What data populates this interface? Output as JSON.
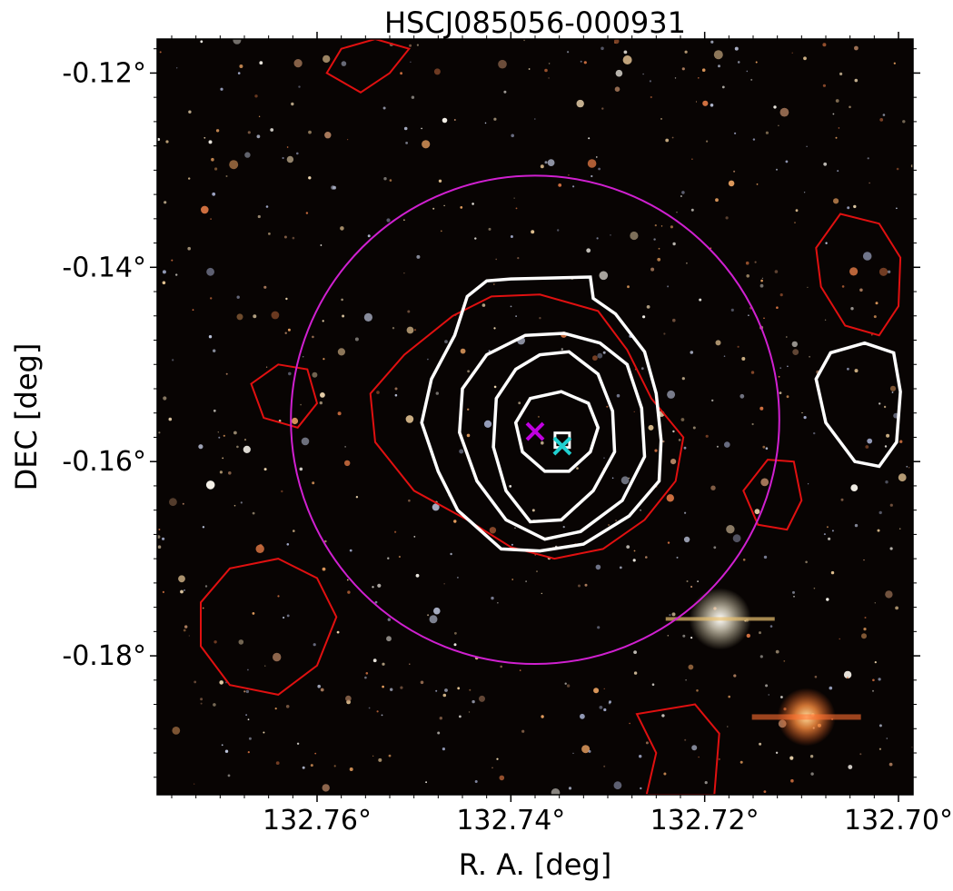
{
  "chart_data": {
    "type": "image",
    "title": "HSCJ085056-000931",
    "xlabel": "R. A. [deg]",
    "ylabel": "DEC [deg]",
    "x_direction": "decreasing",
    "xlim": [
      132.7765,
      132.6985
    ],
    "ylim": [
      -0.1943,
      -0.1165
    ],
    "x_ticks": [
      {
        "value": 132.76,
        "label": "132.76°"
      },
      {
        "value": 132.74,
        "label": "132.74°"
      },
      {
        "value": 132.72,
        "label": "132.72°"
      },
      {
        "value": 132.7,
        "label": "132.70°"
      }
    ],
    "y_ticks": [
      {
        "value": -0.12,
        "label": "-0.12°"
      },
      {
        "value": -0.14,
        "label": "-0.14°"
      },
      {
        "value": -0.16,
        "label": "-0.16°"
      },
      {
        "value": -0.18,
        "label": "-0.18°"
      }
    ],
    "background": "optical color composite image (star field)",
    "circle": {
      "center_ra": 132.7375,
      "center_dec": -0.1557,
      "radius_deg": 0.0252,
      "color": "#d020d0"
    },
    "markers": [
      {
        "ra": 132.7375,
        "dec": -0.1569,
        "shape": "x",
        "color": "#c000e0"
      },
      {
        "ra": 132.7347,
        "dec": -0.1578,
        "shape": "square",
        "color": "#ffffff"
      },
      {
        "ra": 132.7347,
        "dec": -0.1584,
        "shape": "x",
        "color": "#20d0d0"
      }
    ],
    "white_contours": [
      [
        [
          132.7425,
          -0.1414
        ],
        [
          132.74,
          -0.1412
        ],
        [
          132.736,
          -0.1411
        ],
        [
          132.7318,
          -0.141
        ],
        [
          132.7315,
          -0.1432
        ],
        [
          132.7292,
          -0.1448
        ],
        [
          132.7262,
          -0.1487
        ],
        [
          132.725,
          -0.153
        ],
        [
          132.7245,
          -0.1578
        ],
        [
          132.7247,
          -0.162
        ],
        [
          132.7278,
          -0.1656
        ],
        [
          132.7325,
          -0.1685
        ],
        [
          132.737,
          -0.1692
        ],
        [
          132.741,
          -0.169
        ],
        [
          132.7455,
          -0.165
        ],
        [
          132.7475,
          -0.161
        ],
        [
          132.7492,
          -0.156
        ],
        [
          132.7482,
          -0.1515
        ],
        [
          132.7458,
          -0.147
        ],
        [
          132.7445,
          -0.143
        ],
        [
          132.7425,
          -0.1414
        ]
      ],
      [
        [
          132.7385,
          -0.147
        ],
        [
          132.7345,
          -0.1468
        ],
        [
          132.7308,
          -0.1478
        ],
        [
          132.728,
          -0.15
        ],
        [
          132.7265,
          -0.1545
        ],
        [
          132.7262,
          -0.1595
        ],
        [
          132.7285,
          -0.164
        ],
        [
          132.7328,
          -0.1672
        ],
        [
          132.7365,
          -0.168
        ],
        [
          132.7405,
          -0.166
        ],
        [
          132.7435,
          -0.162
        ],
        [
          132.7453,
          -0.157
        ],
        [
          132.745,
          -0.1525
        ],
        [
          132.7425,
          -0.149
        ],
        [
          132.7385,
          -0.147
        ]
      ],
      [
        [
          132.737,
          -0.149
        ],
        [
          132.734,
          -0.1487
        ],
        [
          132.731,
          -0.151
        ],
        [
          132.7295,
          -0.1548
        ],
        [
          132.7293,
          -0.159
        ],
        [
          132.7315,
          -0.163
        ],
        [
          132.7348,
          -0.166
        ],
        [
          132.738,
          -0.1662
        ],
        [
          132.7405,
          -0.163
        ],
        [
          132.7418,
          -0.1585
        ],
        [
          132.7415,
          -0.1535
        ],
        [
          132.7395,
          -0.1505
        ],
        [
          132.737,
          -0.149
        ]
      ],
      [
        [
          132.738,
          -0.1535
        ],
        [
          132.7348,
          -0.1528
        ],
        [
          132.732,
          -0.154
        ],
        [
          132.731,
          -0.1565
        ],
        [
          132.7318,
          -0.159
        ],
        [
          132.734,
          -0.161
        ],
        [
          132.7365,
          -0.161
        ],
        [
          132.7388,
          -0.159
        ],
        [
          132.7395,
          -0.156
        ],
        [
          132.738,
          -0.1535
        ]
      ],
      [
        [
          132.7035,
          -0.1478
        ],
        [
          132.7005,
          -0.1488
        ],
        [
          132.6998,
          -0.1528
        ],
        [
          132.7002,
          -0.158
        ],
        [
          132.702,
          -0.1605
        ],
        [
          132.7045,
          -0.16
        ],
        [
          132.7075,
          -0.156
        ],
        [
          132.7085,
          -0.1515
        ],
        [
          132.707,
          -0.1488
        ],
        [
          132.7035,
          -0.1478
        ]
      ]
    ],
    "red_contours": [
      [
        [
          132.742,
          -0.143
        ],
        [
          132.737,
          -0.1428
        ],
        [
          132.731,
          -0.1445
        ],
        [
          132.728,
          -0.1485
        ],
        [
          132.7255,
          -0.1535
        ],
        [
          132.7222,
          -0.1575
        ],
        [
          132.723,
          -0.162
        ],
        [
          132.7262,
          -0.166
        ],
        [
          132.7305,
          -0.169
        ],
        [
          132.7355,
          -0.17
        ],
        [
          132.74,
          -0.1688
        ],
        [
          132.7445,
          -0.166
        ],
        [
          132.75,
          -0.163
        ],
        [
          132.754,
          -0.158
        ],
        [
          132.7545,
          -0.153
        ],
        [
          132.751,
          -0.149
        ],
        [
          132.746,
          -0.145
        ],
        [
          132.742,
          -0.143
        ]
      ],
      [
        [
          132.764,
          -0.17
        ],
        [
          132.76,
          -0.172
        ],
        [
          132.758,
          -0.176
        ],
        [
          132.76,
          -0.181
        ],
        [
          132.764,
          -0.184
        ],
        [
          132.769,
          -0.183
        ],
        [
          132.772,
          -0.179
        ],
        [
          132.772,
          -0.1745
        ],
        [
          132.769,
          -0.171
        ],
        [
          132.764,
          -0.17
        ]
      ],
      [
        [
          132.706,
          -0.1345
        ],
        [
          132.702,
          -0.1355
        ],
        [
          132.6998,
          -0.139
        ],
        [
          132.7,
          -0.144
        ],
        [
          132.702,
          -0.147
        ],
        [
          132.7055,
          -0.146
        ],
        [
          132.708,
          -0.142
        ],
        [
          132.7085,
          -0.138
        ],
        [
          132.706,
          -0.1345
        ]
      ],
      [
        [
          132.7555,
          -0.122
        ],
        [
          132.7525,
          -0.12
        ],
        [
          132.7505,
          -0.1175
        ],
        [
          132.754,
          -0.1165
        ],
        [
          132.7575,
          -0.1175
        ],
        [
          132.759,
          -0.12
        ],
        [
          132.7555,
          -0.122
        ]
      ],
      [
        [
          132.7135,
          -0.1598
        ],
        [
          132.7108,
          -0.16
        ],
        [
          132.71,
          -0.164
        ],
        [
          132.7115,
          -0.167
        ],
        [
          132.7145,
          -0.1665
        ],
        [
          132.716,
          -0.163
        ],
        [
          132.7135,
          -0.1598
        ]
      ],
      [
        [
          132.764,
          -0.15
        ],
        [
          132.761,
          -0.1505
        ],
        [
          132.76,
          -0.154
        ],
        [
          132.762,
          -0.1565
        ],
        [
          132.7655,
          -0.1555
        ],
        [
          132.7668,
          -0.152
        ],
        [
          132.764,
          -0.15
        ]
      ],
      [
        [
          132.727,
          -0.186
        ],
        [
          132.725,
          -0.19
        ],
        [
          132.726,
          -0.1943
        ],
        [
          132.719,
          -0.1943
        ],
        [
          132.7185,
          -0.188
        ],
        [
          132.721,
          -0.185
        ],
        [
          132.727,
          -0.186
        ]
      ]
    ]
  }
}
